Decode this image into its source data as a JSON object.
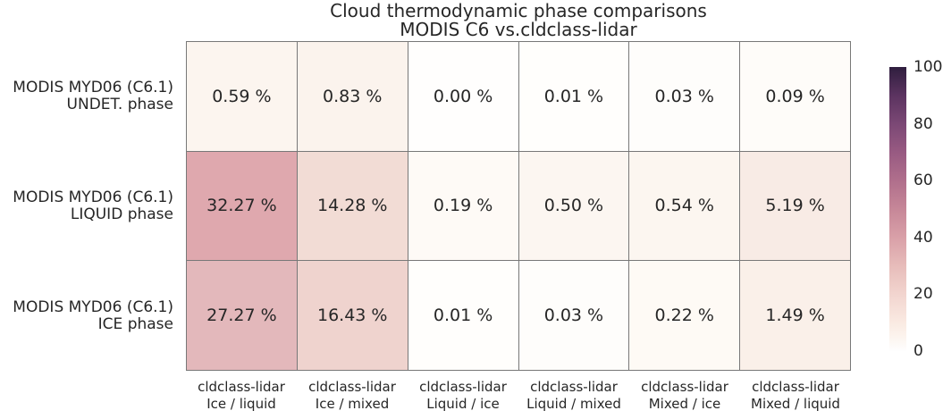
{
  "title": {
    "line1": "Cloud thermodynamic phase comparisons",
    "line2": "MODIS C6 vs.cldclass-lidar"
  },
  "colors": {
    "text": "#262626",
    "grid_line": "#787878",
    "background": "#ffffff"
  },
  "chart_data": {
    "type": "heatmap",
    "title": "Cloud thermodynamic phase comparisons\nMODIS C6 vs.cldclass-lidar",
    "rows": [
      {
        "label_line1": "MODIS MYD06 (C6.1)",
        "label_line2": "UNDET. phase"
      },
      {
        "label_line1": "MODIS MYD06 (C6.1)",
        "label_line2": "LIQUID phase"
      },
      {
        "label_line1": "MODIS MYD06 (C6.1)",
        "label_line2": "ICE phase"
      }
    ],
    "columns": [
      {
        "label_line1": "cldclass-lidar",
        "label_line2": "Ice / liquid"
      },
      {
        "label_line1": "cldclass-lidar",
        "label_line2": "Ice / mixed"
      },
      {
        "label_line1": "cldclass-lidar",
        "label_line2": "Liquid / ice"
      },
      {
        "label_line1": "cldclass-lidar",
        "label_line2": "Liquid / mixed"
      },
      {
        "label_line1": "cldclass-lidar",
        "label_line2": "Mixed / ice"
      },
      {
        "label_line1": "cldclass-lidar",
        "label_line2": "Mixed / liquid"
      }
    ],
    "values": [
      [
        0.59,
        0.83,
        0.0,
        0.01,
        0.03,
        0.09
      ],
      [
        32.27,
        14.28,
        0.19,
        0.5,
        0.54,
        5.19
      ],
      [
        27.27,
        16.43,
        0.01,
        0.03,
        0.22,
        1.49
      ]
    ],
    "cell_labels": [
      [
        "0.59 %",
        "0.83 %",
        "0.00 %",
        "0.01 %",
        "0.03 %",
        "0.09 %"
      ],
      [
        "32.27 %",
        "14.28 %",
        "0.19 %",
        "0.50 %",
        "0.54 %",
        "5.19 %"
      ],
      [
        "27.27 %",
        "16.43 %",
        "0.01 %",
        "0.03 %",
        "0.22 %",
        "1.49 %"
      ]
    ],
    "cell_colors": [
      [
        "#fcf5ef",
        "#fbf3ed",
        "#fffefd",
        "#fffefc",
        "#fefdfb",
        "#fefcf9"
      ],
      [
        "#dfa8ae",
        "#f2dcd5",
        "#fefaf6",
        "#fcf6f1",
        "#fcf6f0",
        "#f8ebe5"
      ],
      [
        "#e3b8bb",
        "#efd3ce",
        "#fffefc",
        "#fefdfb",
        "#fefaf5",
        "#faf0e9"
      ]
    ],
    "colorbar": {
      "min": 0,
      "max": 100,
      "ticks": [
        0,
        20,
        40,
        60,
        80,
        100
      ],
      "gradient_stops": [
        {
          "pos": 0,
          "color": "#fefefe"
        },
        {
          "pos": 5,
          "color": "#fcf4ee"
        },
        {
          "pos": 10,
          "color": "#faeae2"
        },
        {
          "pos": 20,
          "color": "#f2d5cf"
        },
        {
          "pos": 30,
          "color": "#e7bcba"
        },
        {
          "pos": 40,
          "color": "#d9a0a8"
        },
        {
          "pos": 50,
          "color": "#c68798"
        },
        {
          "pos": 60,
          "color": "#b06f8c"
        },
        {
          "pos": 70,
          "color": "#985a82"
        },
        {
          "pos": 80,
          "color": "#7b4875"
        },
        {
          "pos": 90,
          "color": "#5b3360"
        },
        {
          "pos": 100,
          "color": "#2f1e3e"
        }
      ]
    }
  }
}
